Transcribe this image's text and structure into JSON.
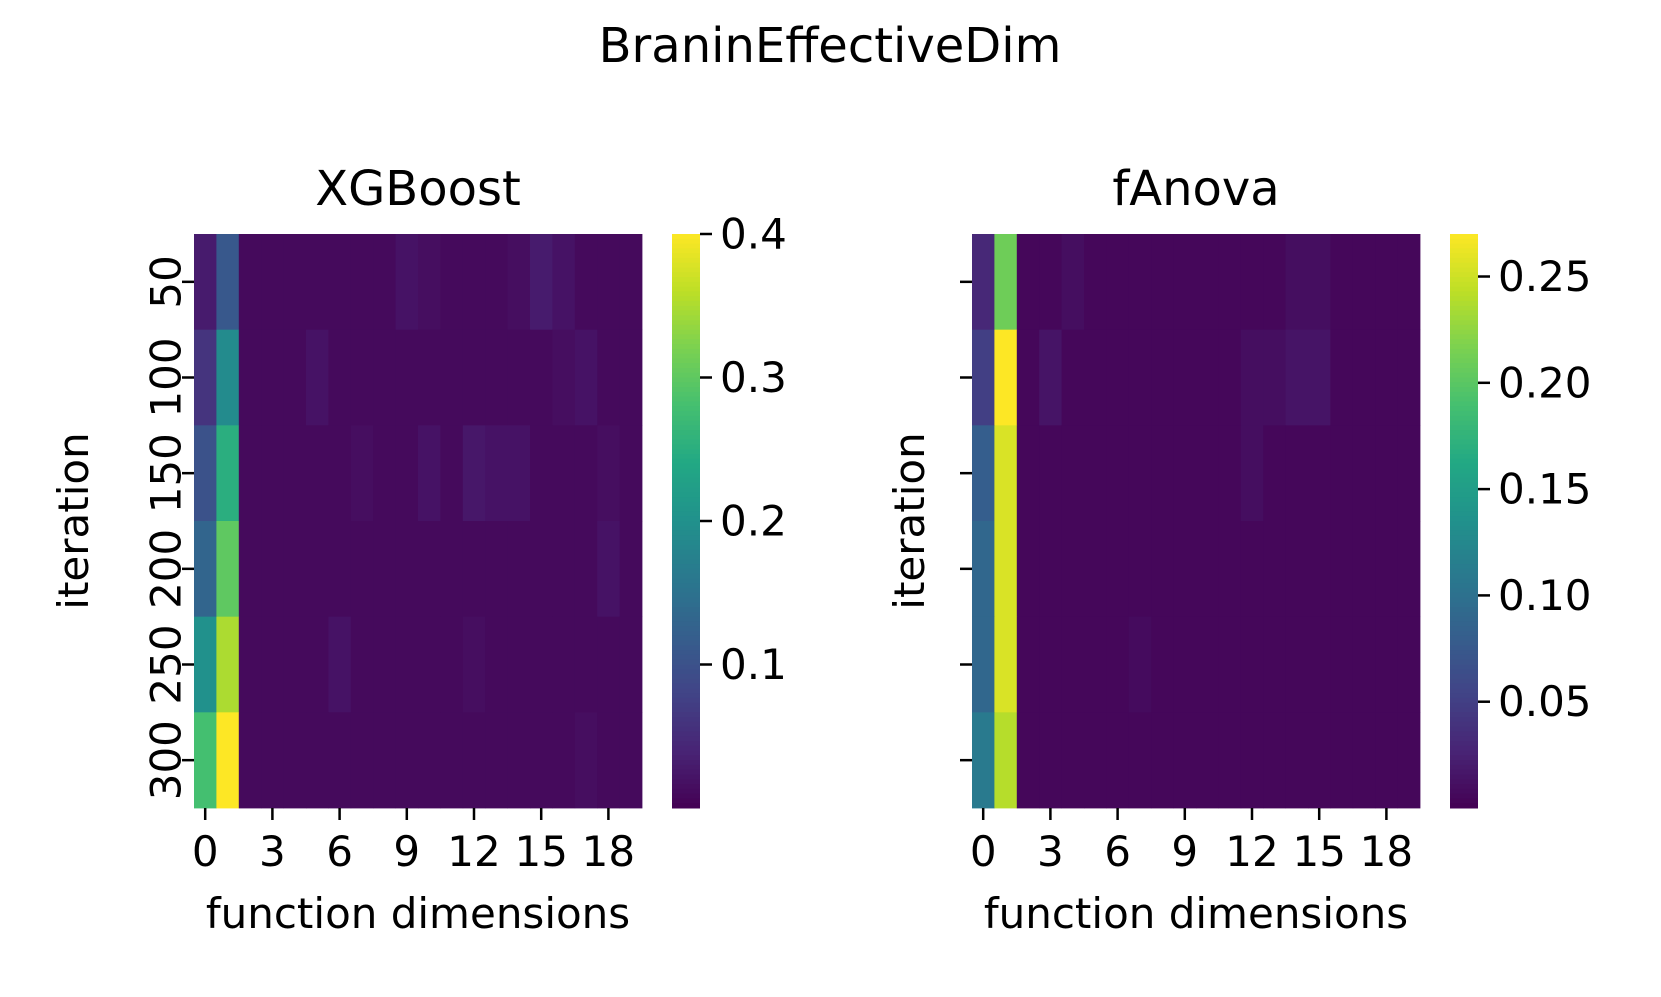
{
  "figure_title": "BraninEffectiveDim",
  "chart_data": [
    {
      "type": "heatmap",
      "title": "XGBoost",
      "xlabel": "function dimensions",
      "ylabel": "iteration",
      "x_tick_labels": [
        "0",
        "3",
        "6",
        "9",
        "12",
        "15",
        "18"
      ],
      "x_tick_positions": [
        0,
        3,
        6,
        9,
        12,
        15,
        18
      ],
      "y_tick_labels": [
        "50",
        "100",
        "150",
        "200",
        "250",
        "300"
      ],
      "colormap": "viridis",
      "colorbar": {
        "min": 0.0,
        "max": 0.4,
        "ticks": [
          0.1,
          0.2,
          0.3,
          0.4
        ],
        "tick_labels": [
          "0.1",
          "0.2",
          "0.3",
          "0.4"
        ]
      },
      "values": [
        [
          0.03,
          0.11,
          0.01,
          0.01,
          0.01,
          0.01,
          0.01,
          0.01,
          0.01,
          0.02,
          0.015,
          0.01,
          0.01,
          0.01,
          0.015,
          0.03,
          0.02,
          0.01,
          0.01,
          0.01
        ],
        [
          0.06,
          0.19,
          0.01,
          0.01,
          0.01,
          0.02,
          0.01,
          0.01,
          0.01,
          0.01,
          0.01,
          0.01,
          0.01,
          0.01,
          0.01,
          0.01,
          0.015,
          0.02,
          0.01,
          0.01
        ],
        [
          0.1,
          0.25,
          0.01,
          0.01,
          0.01,
          0.01,
          0.01,
          0.015,
          0.01,
          0.01,
          0.02,
          0.01,
          0.025,
          0.02,
          0.02,
          0.01,
          0.01,
          0.01,
          0.015,
          0.01
        ],
        [
          0.13,
          0.3,
          0.01,
          0.01,
          0.01,
          0.01,
          0.01,
          0.01,
          0.01,
          0.01,
          0.01,
          0.01,
          0.01,
          0.01,
          0.01,
          0.01,
          0.01,
          0.01,
          0.02,
          0.01
        ],
        [
          0.2,
          0.35,
          0.01,
          0.01,
          0.01,
          0.01,
          0.02,
          0.01,
          0.01,
          0.01,
          0.01,
          0.01,
          0.015,
          0.01,
          0.01,
          0.01,
          0.01,
          0.01,
          0.01,
          0.01
        ],
        [
          0.28,
          0.4,
          0.01,
          0.01,
          0.01,
          0.01,
          0.01,
          0.01,
          0.01,
          0.01,
          0.01,
          0.01,
          0.01,
          0.01,
          0.01,
          0.01,
          0.01,
          0.015,
          0.01,
          0.01
        ]
      ]
    },
    {
      "type": "heatmap",
      "title": "fAnova",
      "xlabel": "function dimensions",
      "ylabel": "iteration",
      "x_tick_labels": [
        "0",
        "3",
        "6",
        "9",
        "12",
        "15",
        "18"
      ],
      "x_tick_positions": [
        0,
        3,
        6,
        9,
        12,
        15,
        18
      ],
      "y_tick_labels": [
        "",
        "",
        "",
        "",
        "",
        ""
      ],
      "colormap": "viridis",
      "colorbar": {
        "min": 0.0,
        "max": 0.27,
        "ticks": [
          0.05,
          0.1,
          0.15,
          0.2,
          0.25
        ],
        "tick_labels": [
          "0.05",
          "0.10",
          "0.15",
          "0.20",
          "0.25"
        ]
      },
      "values": [
        [
          0.03,
          0.21,
          0.005,
          0.005,
          0.01,
          0.005,
          0.005,
          0.005,
          0.005,
          0.005,
          0.005,
          0.005,
          0.005,
          0.005,
          0.01,
          0.01,
          0.005,
          0.005,
          0.005,
          0.005
        ],
        [
          0.05,
          0.27,
          0.005,
          0.015,
          0.005,
          0.005,
          0.005,
          0.005,
          0.005,
          0.005,
          0.005,
          0.005,
          0.01,
          0.01,
          0.015,
          0.015,
          0.005,
          0.005,
          0.005,
          0.005
        ],
        [
          0.08,
          0.255,
          0.005,
          0.005,
          0.005,
          0.005,
          0.005,
          0.005,
          0.005,
          0.005,
          0.005,
          0.005,
          0.01,
          0.005,
          0.005,
          0.005,
          0.005,
          0.005,
          0.005,
          0.005
        ],
        [
          0.09,
          0.255,
          0.005,
          0.005,
          0.005,
          0.005,
          0.005,
          0.005,
          0.005,
          0.005,
          0.005,
          0.005,
          0.005,
          0.005,
          0.005,
          0.005,
          0.005,
          0.005,
          0.005,
          0.005
        ],
        [
          0.09,
          0.255,
          0.005,
          0.005,
          0.005,
          0.005,
          0.005,
          0.008,
          0.005,
          0.005,
          0.005,
          0.005,
          0.005,
          0.005,
          0.005,
          0.005,
          0.005,
          0.005,
          0.005,
          0.005
        ],
        [
          0.11,
          0.24,
          0.005,
          0.005,
          0.005,
          0.005,
          0.005,
          0.005,
          0.005,
          0.005,
          0.005,
          0.005,
          0.005,
          0.005,
          0.005,
          0.005,
          0.005,
          0.005,
          0.005,
          0.005
        ]
      ]
    }
  ]
}
